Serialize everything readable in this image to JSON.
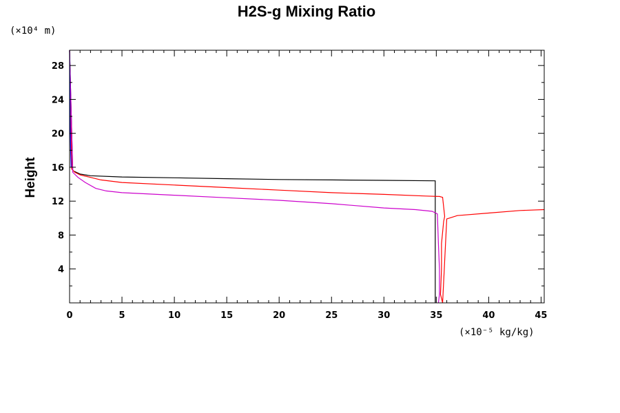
{
  "chart_data": {
    "type": "line",
    "title": "H2S-g Mixing Ratio",
    "ylabel": "Height",
    "y_unit_label": "(×10⁴ m)",
    "x_unit_label": "(×10⁻⁵ kg/kg)",
    "xlim": [
      0,
      45.3
    ],
    "ylim": [
      0,
      29.8
    ],
    "xticks": [
      0,
      5,
      10,
      15,
      20,
      25,
      30,
      35,
      40,
      45
    ],
    "yticks": [
      4,
      8,
      12,
      16,
      20,
      24,
      28
    ],
    "series": [
      {
        "color": "#000000",
        "x": [
          0,
          0.3,
          1,
          2,
          5,
          10,
          15,
          20,
          25,
          30,
          34.9,
          34.9,
          34.9,
          34.9
        ],
        "y": [
          29.8,
          15.6,
          15.2,
          15.0,
          14.85,
          14.75,
          14.65,
          14.55,
          14.5,
          14.45,
          14.4,
          10.0,
          5.0,
          0
        ]
      },
      {
        "color": "#ff0000",
        "x": [
          0,
          0.2,
          0.5,
          1,
          2,
          3,
          5,
          10,
          15,
          20,
          25,
          30,
          34,
          35.3,
          35.6,
          35.8,
          35.7,
          35.5,
          35.5,
          35.4,
          35.6,
          36,
          37,
          40,
          43,
          45.3
        ],
        "y": [
          29.8,
          15.8,
          15.4,
          15.1,
          14.8,
          14.5,
          14.2,
          13.9,
          13.6,
          13.3,
          13.0,
          12.8,
          12.6,
          12.55,
          12.45,
          10.2,
          9.6,
          7.0,
          4.0,
          1.0,
          0,
          9.9,
          10.3,
          10.6,
          10.9,
          11.0
        ]
      },
      {
        "color": "#cc00cc",
        "x": [
          0,
          0.3,
          0.8,
          1.5,
          2.5,
          3.5,
          5,
          10,
          15,
          20,
          25,
          30,
          33,
          34.6,
          35.1,
          35.2,
          35.3,
          35.3,
          35.2
        ],
        "y": [
          29.8,
          15.4,
          14.8,
          14.2,
          13.5,
          13.2,
          13.0,
          12.7,
          12.4,
          12.1,
          11.7,
          11.2,
          11.0,
          10.8,
          10.5,
          7.0,
          4.0,
          1.0,
          0
        ]
      },
      {
        "color": "#0000ff",
        "x": [
          0,
          0.05,
          0.1,
          0.15
        ],
        "y": [
          29.8,
          22.0,
          18.0,
          16.0
        ]
      }
    ],
    "grid": false,
    "legend": "none"
  }
}
